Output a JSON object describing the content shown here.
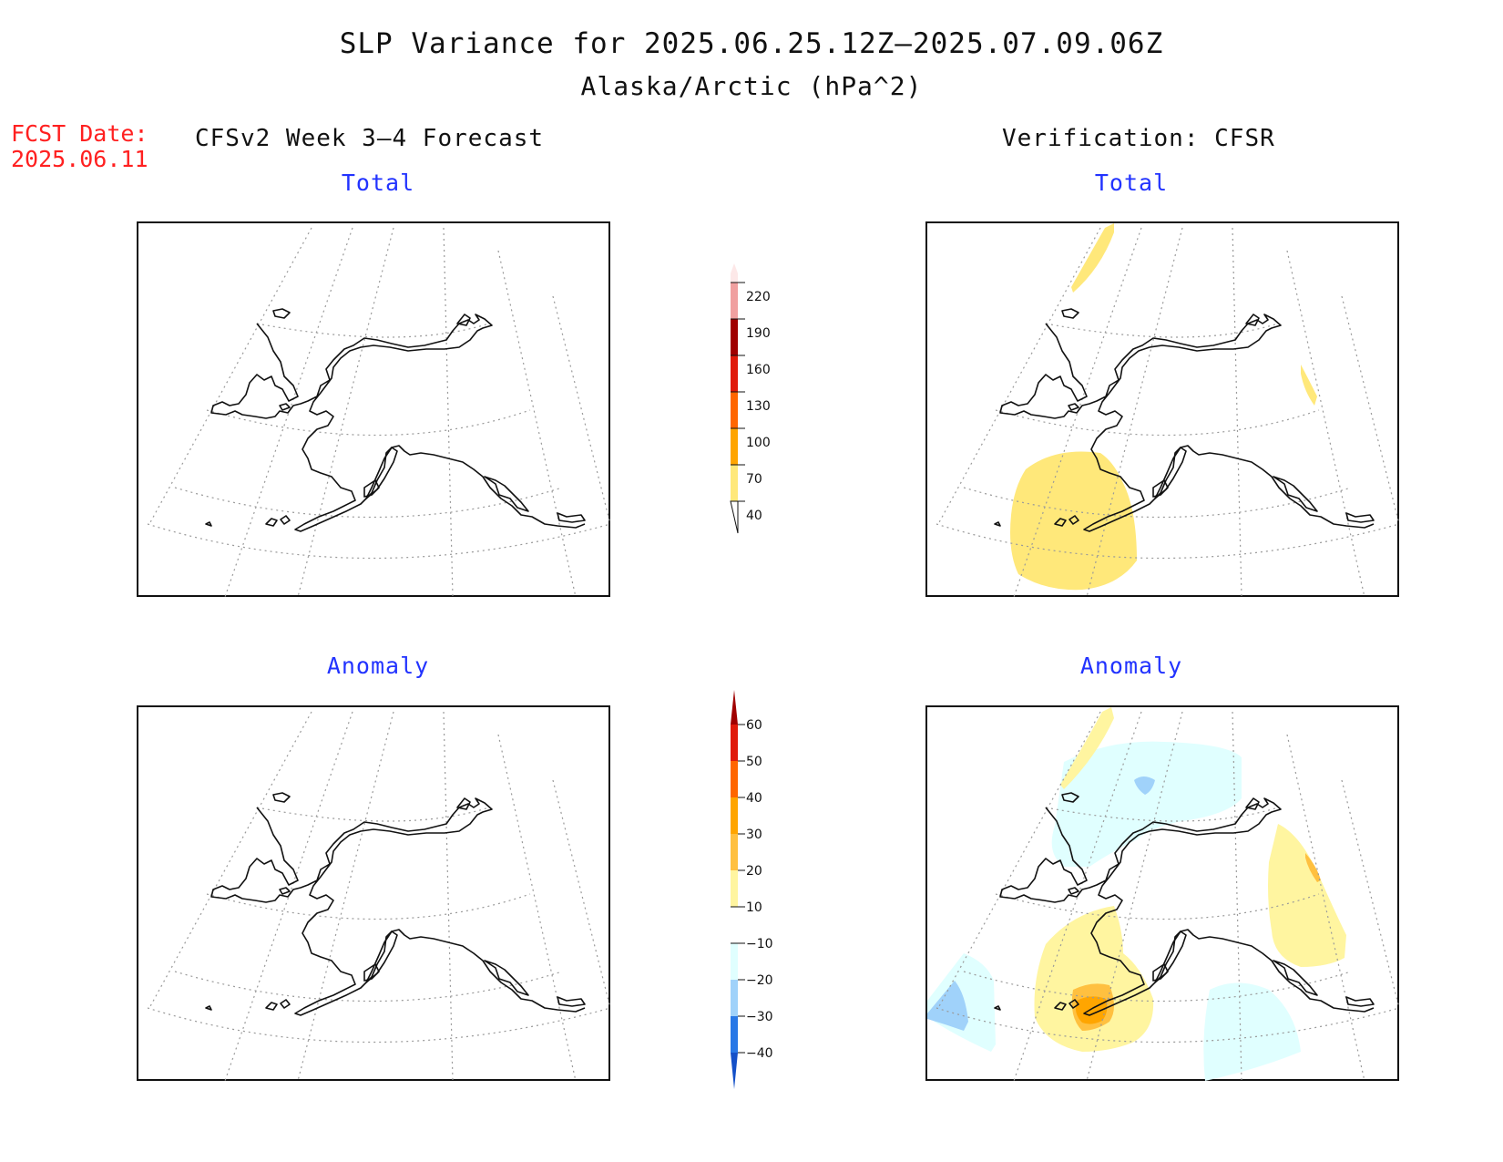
{
  "title": {
    "line1": "SLP Variance for 2025.06.25.12Z–2025.07.09.06Z",
    "line2": "Alaska/Arctic (hPa^2)"
  },
  "forecast": {
    "date_label": "FCST Date:",
    "date_value": "2025.06.11",
    "column_title": "CFSv2 Week 3–4 Forecast"
  },
  "verification": {
    "column_title": "Verification: CFSR"
  },
  "panels": {
    "forecast_total_title": "Total",
    "forecast_anomaly_title": "Anomaly",
    "verification_total_title": "Total",
    "verification_anomaly_title": "Anomaly"
  },
  "colorbars": {
    "total": {
      "levels": [
        "40",
        "70",
        "100",
        "130",
        "160",
        "190",
        "220"
      ],
      "colors": [
        "#ffe87a",
        "#ffa500",
        "#ff6600",
        "#e01a0a",
        "#a00000",
        "#f0a0a0",
        "#fde8e8"
      ]
    },
    "anomaly": {
      "levels": [
        "60",
        "50",
        "40",
        "30",
        "20",
        "10",
        "−10",
        "−20",
        "−30",
        "−40"
      ],
      "colors_top_to_bottom": [
        "#a00000",
        "#e01a0a",
        "#ff6600",
        "#ffa500",
        "#ffc040",
        "#fff5a0",
        "#ffffff",
        "#e0ffff",
        "#a0d2fa",
        "#5aa0f0",
        "#2878e6",
        "#1450c8"
      ]
    }
  },
  "colors": {
    "total_shade_40_70": "#ffe87a",
    "anom_shade_10_20": "#fff5a0",
    "anom_shade_20_30": "#ffc040",
    "anom_shade_30_40": "#ffa500",
    "anom_shade_neg10_neg20": "#e0ffff",
    "anom_shade_neg20_neg30": "#a0d2fa"
  }
}
